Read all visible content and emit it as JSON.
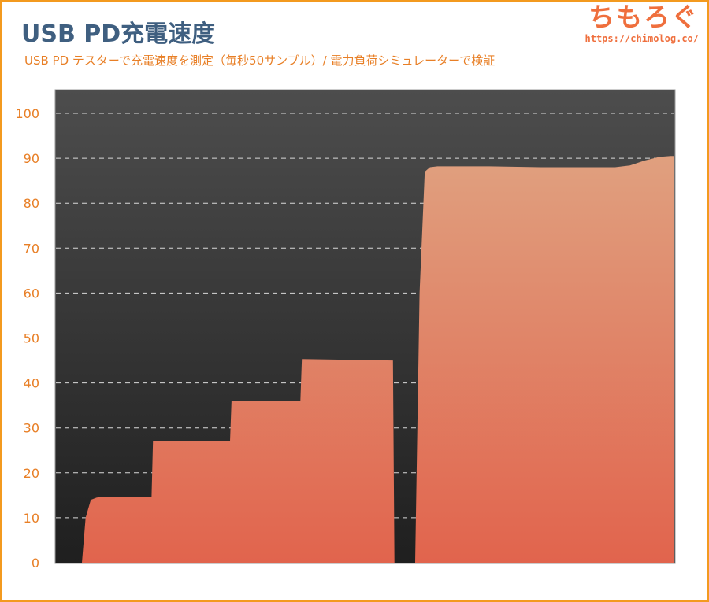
{
  "header": {
    "title": "USB PD充電速度",
    "subtitle": "USB PD テスターで充電速度を測定（毎秒50サンプル）/ 電力負荷シミュレーターで検証"
  },
  "logo": {
    "text": "ちもろぐ",
    "url": "https://chimolog.co/"
  },
  "colors": {
    "frame": "#f39a1f",
    "title": "#3f5f80",
    "accent": "#e87f26",
    "plot_bg_top": "#4d4d4d",
    "plot_bg_bottom": "#1f1f1f",
    "area_bottom": "#e1644d",
    "area_top": "#e0a07f"
  },
  "chart_data": {
    "type": "area",
    "title": "USB PD充電速度",
    "subtitle": "USB PD テスターで充電速度を測定（毎秒50サンプル）/ 電力負荷シミュレーターで検証",
    "xlabel": "",
    "ylabel": "",
    "ylim": [
      0,
      105
    ],
    "yticks": [
      0,
      10,
      20,
      30,
      40,
      50,
      60,
      70,
      80,
      90,
      100
    ],
    "grid": true,
    "legend": "none",
    "series": [
      {
        "x": [
          0,
          0.5,
          1.2,
          2.0,
          3.5,
          9.4,
          9.6,
          20.0,
          20.2,
          29.5,
          29.7,
          42.0,
          42.2,
          45.0,
          45.6,
          46.3,
          47.0,
          48.0,
          55.0,
          62.0,
          66.0,
          72.0,
          74.0,
          76.0,
          78.0,
          79.5,
          80.0
        ],
        "values": [
          0,
          10,
          14,
          14.5,
          14.7,
          14.7,
          27,
          27,
          36,
          36,
          45.3,
          45,
          0,
          0,
          60,
          87,
          88,
          88.2,
          88.2,
          88,
          88,
          88,
          88.4,
          89.5,
          90.3,
          90.5,
          90.5
        ]
      }
    ]
  }
}
